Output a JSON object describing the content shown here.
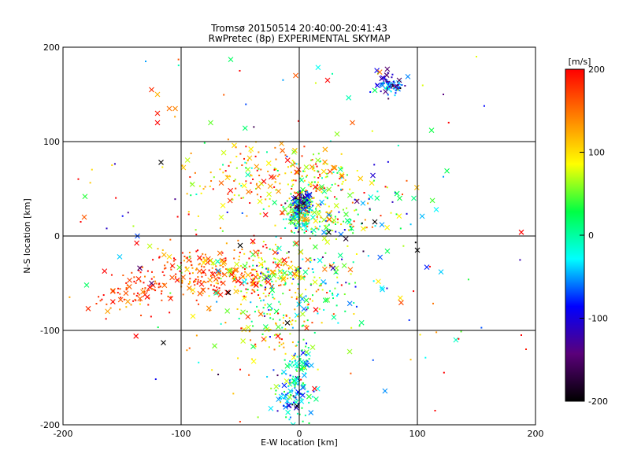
{
  "chart_data": {
    "type": "scatter",
    "title_line1": "Tromsø 20150514 20:40:00-20:41:43",
    "title_line2": "RwPretec (8p) EXPERIMENTAL SKYMAP",
    "xlabel": "E-W location [km]",
    "ylabel": "N-S location [km]",
    "xlim": [
      -200,
      200
    ],
    "ylim": [
      -200,
      200
    ],
    "x_ticks": [
      -200,
      -100,
      0,
      100,
      200
    ],
    "y_ticks": [
      -200,
      -100,
      0,
      100,
      200
    ],
    "x_tick_labels": [
      "-200",
      "-100",
      "0",
      "100",
      "200"
    ],
    "y_tick_labels": [
      "-200",
      "-100",
      "0",
      "100",
      "200"
    ],
    "grid": true,
    "marker_types": [
      "x (large)",
      "dot (small)"
    ],
    "color_variable": "velocity",
    "colorbar": {
      "label": "[m/s]",
      "range": [
        -200,
        200
      ],
      "ticks": [
        -200,
        -100,
        0,
        100,
        200
      ],
      "tick_labels": [
        "-200",
        "-100",
        "0",
        "100",
        "200"
      ],
      "colors": [
        "#000000",
        "#5a007a",
        "#0000ff",
        "#00ffff",
        "#00ff44",
        "#ffff00",
        "#ff8000",
        "#ff0000"
      ]
    },
    "clusters": [
      {
        "x": 0,
        "y": 25,
        "sx": 6,
        "sy": 9,
        "n": 200,
        "v": 10,
        "vs": 60
      },
      {
        "x": 3,
        "y": 35,
        "sx": 4,
        "sy": 5,
        "n": 90,
        "v": -120,
        "vs": 40
      },
      {
        "x": 75,
        "y": 160,
        "sx": 7,
        "sy": 6,
        "n": 80,
        "v": -80,
        "vs": 60
      },
      {
        "x": -5,
        "y": -165,
        "sx": 10,
        "sy": 12,
        "n": 110,
        "v": -30,
        "vs": 50
      },
      {
        "x": 2,
        "y": -135,
        "sx": 6,
        "sy": 10,
        "n": 40,
        "v": -10,
        "vs": 40
      },
      {
        "x": -80,
        "y": -40,
        "sx": 25,
        "sy": 15,
        "n": 220,
        "v": 160,
        "vs": 40
      },
      {
        "x": -30,
        "y": -40,
        "sx": 20,
        "sy": 15,
        "n": 150,
        "v": 100,
        "vs": 60
      },
      {
        "x": 10,
        "y": -50,
        "sx": 30,
        "sy": 25,
        "n": 140,
        "v": 0,
        "vs": 90
      },
      {
        "x": -140,
        "y": -60,
        "sx": 20,
        "sy": 15,
        "n": 80,
        "v": 180,
        "vs": 30
      },
      {
        "x": 25,
        "y": 15,
        "sx": 15,
        "sy": 10,
        "n": 80,
        "v": 70,
        "vs": 70
      },
      {
        "x": -40,
        "y": 60,
        "sx": 30,
        "sy": 20,
        "n": 140,
        "v": 130,
        "vs": 60
      },
      {
        "x": 15,
        "y": 60,
        "sx": 18,
        "sy": 15,
        "n": 100,
        "v": 100,
        "vs": 60
      },
      {
        "x": -20,
        "y": -100,
        "sx": 20,
        "sy": 20,
        "n": 100,
        "v": 90,
        "vs": 60
      },
      {
        "x": 50,
        "y": 40,
        "sx": 30,
        "sy": 20,
        "n": 60,
        "v": 30,
        "vs": 100
      },
      {
        "x": 0,
        "y": 0,
        "sx": 90,
        "sy": 90,
        "n": 160,
        "v": 60,
        "vs": 110
      }
    ],
    "points": [
      {
        "x": -117,
        "y": 78,
        "v": -200,
        "m": "x"
      },
      {
        "x": -60,
        "y": -60,
        "v": -200,
        "m": "x"
      },
      {
        "x": -125,
        "y": -50,
        "v": -150,
        "m": "x"
      },
      {
        "x": -50,
        "y": -10,
        "v": -200,
        "m": "x"
      },
      {
        "x": -115,
        "y": -113,
        "v": -200,
        "m": "x"
      },
      {
        "x": 100,
        "y": -15,
        "v": -200,
        "m": "x"
      },
      {
        "x": 64,
        "y": 15,
        "v": -200,
        "m": "x"
      },
      {
        "x": -10,
        "y": -92,
        "v": -200,
        "m": "x"
      },
      {
        "x": -2,
        "y": -180,
        "v": -200,
        "m": "x"
      },
      {
        "x": 25,
        "y": 4,
        "v": -200,
        "m": "x"
      },
      {
        "x": 188,
        "y": 4,
        "v": 200,
        "m": "x"
      },
      {
        "x": 24,
        "y": 165,
        "v": 200,
        "m": "x"
      },
      {
        "x": -120,
        "y": 120,
        "v": 200,
        "m": "x"
      },
      {
        "x": -120,
        "y": 130,
        "v": 190,
        "m": "x"
      },
      {
        "x": -125,
        "y": 155,
        "v": 180,
        "m": "x"
      },
      {
        "x": -3,
        "y": 170,
        "v": 160,
        "m": "x"
      },
      {
        "x": -110,
        "y": 135,
        "v": 150,
        "m": "x"
      },
      {
        "x": -105,
        "y": 135,
        "v": 140,
        "m": "x"
      },
      {
        "x": -120,
        "y": 150,
        "v": 120,
        "m": "x"
      },
      {
        "x": -75,
        "y": 120,
        "v": 50,
        "m": "x"
      },
      {
        "x": -58,
        "y": 187,
        "v": 20,
        "m": "x"
      },
      {
        "x": 112,
        "y": 112,
        "v": 30,
        "m": "x"
      },
      {
        "x": 116,
        "y": 28,
        "v": -30,
        "m": "x"
      },
      {
        "x": 120,
        "y": -38,
        "v": -40,
        "m": "x"
      },
      {
        "x": 97,
        "y": 40,
        "v": 10,
        "m": "x"
      },
      {
        "x": 85,
        "y": 40,
        "v": 30,
        "m": "x"
      },
      {
        "x": 70,
        "y": 12,
        "v": -50,
        "m": "x"
      },
      {
        "x": -180,
        "y": -52,
        "v": 20,
        "m": "x"
      },
      {
        "x": -152,
        "y": -22,
        "v": -40,
        "m": "x"
      },
      {
        "x": -182,
        "y": 20,
        "v": 160,
        "m": "x"
      },
      {
        "x": -110,
        "y": -22,
        "v": 100,
        "m": "x"
      },
      {
        "x": -90,
        "y": -85,
        "v": 90,
        "m": "x"
      },
      {
        "x": 32,
        "y": 108,
        "v": 60,
        "m": "x"
      },
      {
        "x": 45,
        "y": 120,
        "v": 160,
        "m": "x"
      },
      {
        "x": -15,
        "y": 98,
        "v": 130,
        "m": "x"
      },
      {
        "x": -55,
        "y": 96,
        "v": 100,
        "m": "x"
      },
      {
        "x": -137,
        "y": 0,
        "v": -70,
        "m": "x"
      },
      {
        "x": -135,
        "y": -34,
        "v": -150,
        "m": "x"
      },
      {
        "x": 70,
        "y": -55,
        "v": -30,
        "m": "x"
      },
      {
        "x": 108,
        "y": -33,
        "v": -80,
        "m": "x"
      },
      {
        "x": 188,
        "y": -105,
        "v": 200,
        "m": "."
      },
      {
        "x": 192,
        "y": -120,
        "v": 190,
        "m": "."
      },
      {
        "x": 115,
        "y": -185,
        "v": 200,
        "m": "."
      },
      {
        "x": 122,
        "y": 150,
        "v": -140,
        "m": "."
      },
      {
        "x": 150,
        "y": 190,
        "v": 80,
        "m": "."
      },
      {
        "x": -130,
        "y": 185,
        "v": -50,
        "m": "."
      },
      {
        "x": -163,
        "y": 8,
        "v": -110,
        "m": "."
      },
      {
        "x": -185,
        "y": 15,
        "v": 200,
        "m": "."
      }
    ]
  }
}
